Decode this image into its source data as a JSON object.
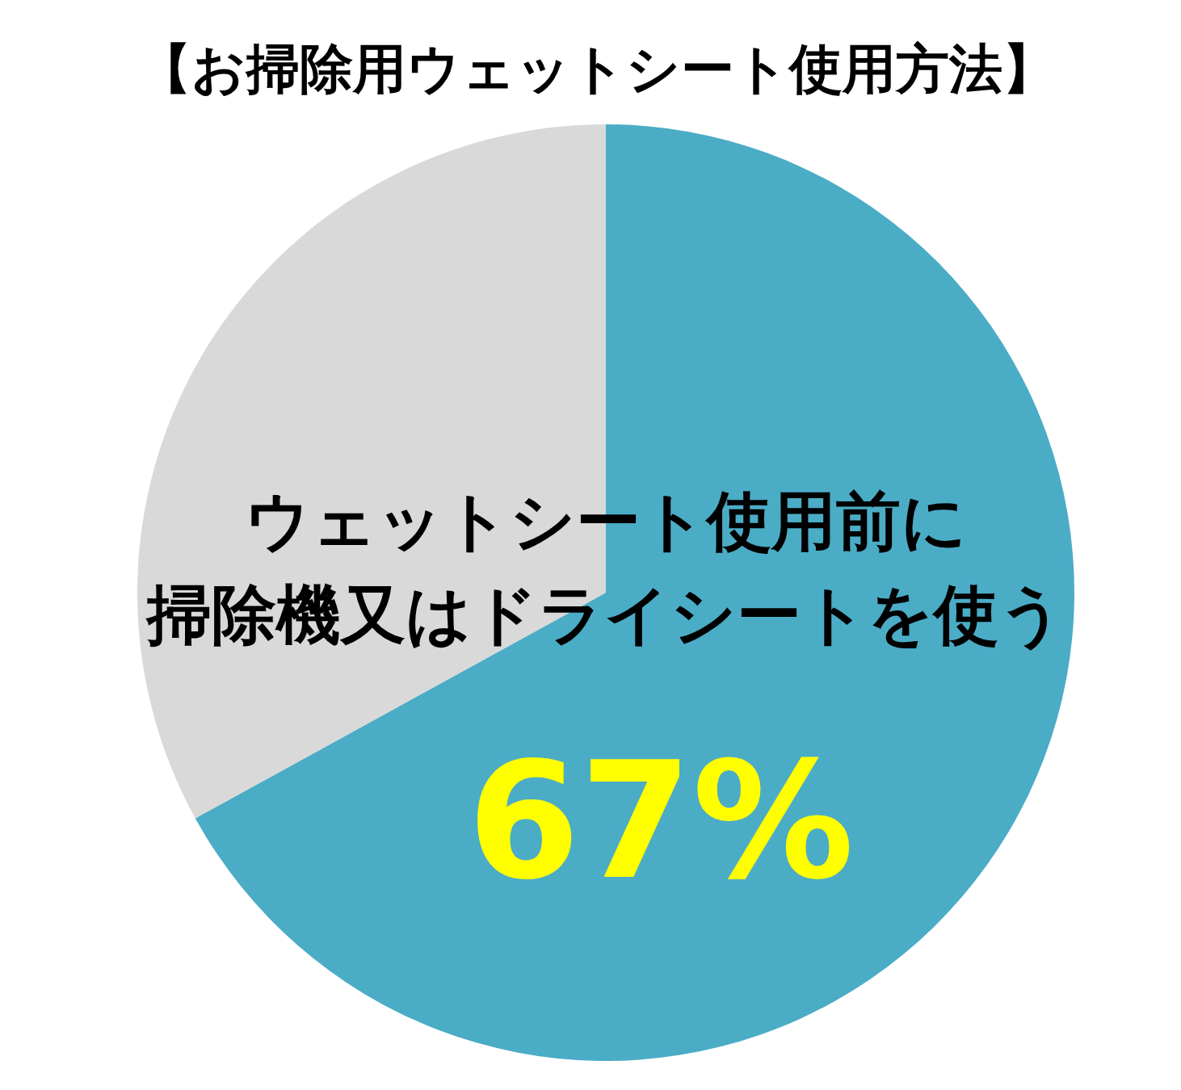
{
  "chart_data": {
    "type": "pie",
    "title": "【お掃除用ウェットシート使用方法】",
    "categories": [
      "ウェットシート使用前に掃除機又はドライシートを使う",
      null
    ],
    "values": [
      67,
      33
    ],
    "colors": [
      "#4bacc6",
      "#d9d9d9"
    ],
    "value_labels": [
      "67%",
      null
    ]
  }
}
